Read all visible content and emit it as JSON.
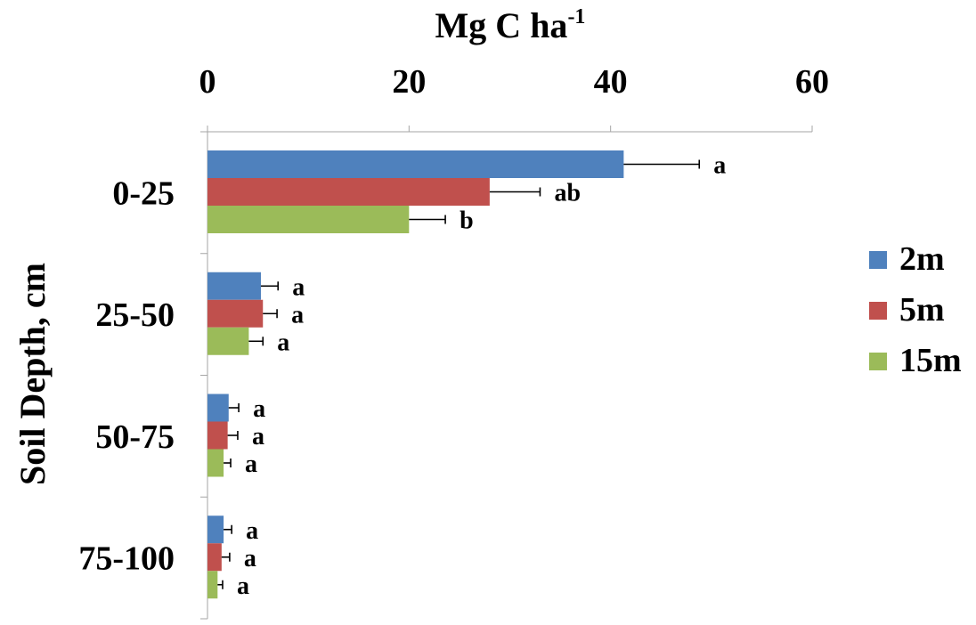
{
  "chart_data": {
    "type": "bar",
    "orientation": "horizontal",
    "xlabel": "Mg C ha",
    "xlabel_superscript": "-1",
    "ylabel": "Soil Depth, cm",
    "xlim": [
      0,
      60
    ],
    "xticks": [
      "0",
      "20",
      "40",
      "60"
    ],
    "categories": [
      "0-25",
      "25-50",
      "50-75",
      "75-100"
    ],
    "series": [
      {
        "name": "2m",
        "color": "#4F81BD",
        "values": [
          41.3,
          5.3,
          2.1,
          1.6
        ],
        "errors": [
          7.5,
          1.7,
          1.0,
          0.8
        ],
        "letters": [
          "a",
          "a",
          "a",
          "a"
        ]
      },
      {
        "name": "5m",
        "color": "#C0504D",
        "values": [
          28.0,
          5.5,
          2.0,
          1.4
        ],
        "errors": [
          5.0,
          1.4,
          1.0,
          0.8
        ],
        "letters": [
          "ab",
          "a",
          "a",
          "a"
        ]
      },
      {
        "name": "15m",
        "color": "#9BBB59",
        "values": [
          20.0,
          4.1,
          1.6,
          1.0
        ],
        "errors": [
          3.6,
          1.4,
          0.7,
          0.5
        ],
        "letters": [
          "b",
          "a",
          "a",
          "a"
        ]
      }
    ],
    "legend": "right",
    "grid": false
  }
}
